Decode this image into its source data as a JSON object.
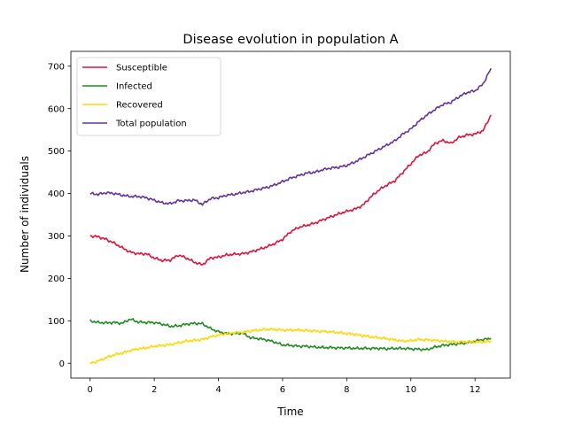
{
  "chart_data": {
    "type": "line",
    "title": "Disease evolution in population A",
    "xlabel": "Time",
    "ylabel": "Number of individuals",
    "xlim": [
      -0.6,
      13.1
    ],
    "ylim": [
      -35,
      735
    ],
    "xticks": [
      0,
      2,
      4,
      6,
      8,
      10,
      12
    ],
    "yticks": [
      0,
      100,
      200,
      300,
      400,
      500,
      600,
      700
    ],
    "grid": false,
    "legend_position": "top-left",
    "series": [
      {
        "name": "Susceptible",
        "color": "#dc143c",
        "x": [
          0,
          0.25,
          0.5,
          0.75,
          1.0,
          1.25,
          1.5,
          1.75,
          2.0,
          2.25,
          2.5,
          2.75,
          3.0,
          3.25,
          3.5,
          3.75,
          4.0,
          4.25,
          4.5,
          4.75,
          5.0,
          5.25,
          5.5,
          5.75,
          6.0,
          6.25,
          6.5,
          6.75,
          7.0,
          7.25,
          7.5,
          7.75,
          8.0,
          8.25,
          8.5,
          8.75,
          9.0,
          9.25,
          9.5,
          9.75,
          10.0,
          10.25,
          10.5,
          10.75,
          11.0,
          11.25,
          11.5,
          11.75,
          12.0,
          12.25,
          12.5
        ],
        "y": [
          300,
          298,
          292,
          283,
          272,
          262,
          258,
          258,
          248,
          242,
          243,
          255,
          248,
          238,
          232,
          248,
          250,
          255,
          257,
          258,
          262,
          268,
          274,
          282,
          292,
          310,
          320,
          325,
          330,
          338,
          345,
          352,
          358,
          363,
          372,
          392,
          408,
          420,
          430,
          450,
          470,
          490,
          497,
          518,
          525,
          518,
          532,
          538,
          540,
          548,
          585
        ]
      },
      {
        "name": "Infected",
        "color": "#228b22",
        "x": [
          0,
          0.25,
          0.5,
          0.75,
          1.0,
          1.25,
          1.5,
          1.75,
          2.0,
          2.25,
          2.5,
          2.75,
          3.0,
          3.25,
          3.5,
          3.75,
          4.0,
          4.25,
          4.5,
          4.75,
          5.0,
          5.25,
          5.5,
          5.75,
          6.0,
          6.25,
          6.5,
          6.75,
          7.0,
          7.25,
          7.5,
          7.75,
          8.0,
          8.25,
          8.5,
          8.75,
          9.0,
          9.25,
          9.5,
          9.75,
          10.0,
          10.25,
          10.5,
          10.75,
          11.0,
          11.25,
          11.5,
          11.75,
          12.0,
          12.25,
          12.5
        ],
        "y": [
          100,
          96,
          95,
          96,
          94,
          104,
          97,
          96,
          96,
          92,
          87,
          88,
          92,
          94,
          93,
          82,
          74,
          70,
          70,
          71,
          60,
          58,
          55,
          50,
          43,
          42,
          40,
          40,
          38,
          37,
          37,
          36,
          36,
          35,
          35,
          35,
          35,
          34,
          35,
          35,
          34,
          33,
          32,
          38,
          42,
          44,
          46,
          48,
          52,
          56,
          58
        ]
      },
      {
        "name": "Recovered",
        "color": "#ffd700",
        "x": [
          0,
          0.25,
          0.5,
          0.75,
          1.0,
          1.25,
          1.5,
          1.75,
          2.0,
          2.25,
          2.5,
          2.75,
          3.0,
          3.25,
          3.5,
          3.75,
          4.0,
          4.25,
          4.5,
          4.75,
          5.0,
          5.25,
          5.5,
          5.75,
          6.0,
          6.25,
          6.5,
          6.75,
          7.0,
          7.25,
          7.5,
          7.75,
          8.0,
          8.25,
          8.5,
          8.75,
          9.0,
          9.25,
          9.5,
          9.75,
          10.0,
          10.25,
          10.5,
          10.75,
          11.0,
          11.25,
          11.5,
          11.75,
          12.0,
          12.25,
          12.5
        ],
        "y": [
          0,
          5,
          13,
          20,
          24,
          30,
          34,
          36,
          40,
          42,
          44,
          48,
          52,
          54,
          56,
          62,
          66,
          70,
          72,
          73,
          76,
          78,
          80,
          80,
          78,
          78,
          78,
          77,
          76,
          75,
          74,
          72,
          70,
          68,
          65,
          62,
          60,
          58,
          55,
          52,
          53,
          56,
          55,
          54,
          52,
          51,
          50,
          51,
          50,
          50,
          52
        ]
      },
      {
        "name": "Total population",
        "color": "#663399",
        "x": [
          0,
          0.25,
          0.5,
          0.75,
          1.0,
          1.25,
          1.5,
          1.75,
          2.0,
          2.25,
          2.5,
          2.75,
          3.0,
          3.25,
          3.5,
          3.75,
          4.0,
          4.25,
          4.5,
          4.75,
          5.0,
          5.25,
          5.5,
          5.75,
          6.0,
          6.25,
          6.5,
          6.75,
          7.0,
          7.25,
          7.5,
          7.75,
          8.0,
          8.25,
          8.5,
          8.75,
          9.0,
          9.25,
          9.5,
          9.75,
          10.0,
          10.25,
          10.5,
          10.75,
          11.0,
          11.25,
          11.5,
          11.75,
          12.0,
          12.25,
          12.5
        ],
        "y": [
          400,
          398,
          402,
          400,
          396,
          393,
          393,
          390,
          384,
          378,
          376,
          383,
          383,
          385,
          374,
          388,
          390,
          396,
          398,
          402,
          405,
          410,
          414,
          420,
          428,
          436,
          442,
          448,
          450,
          456,
          460,
          462,
          466,
          474,
          484,
          494,
          504,
          514,
          524,
          540,
          552,
          570,
          585,
          598,
          610,
          615,
          628,
          638,
          642,
          658,
          695
        ]
      }
    ]
  }
}
